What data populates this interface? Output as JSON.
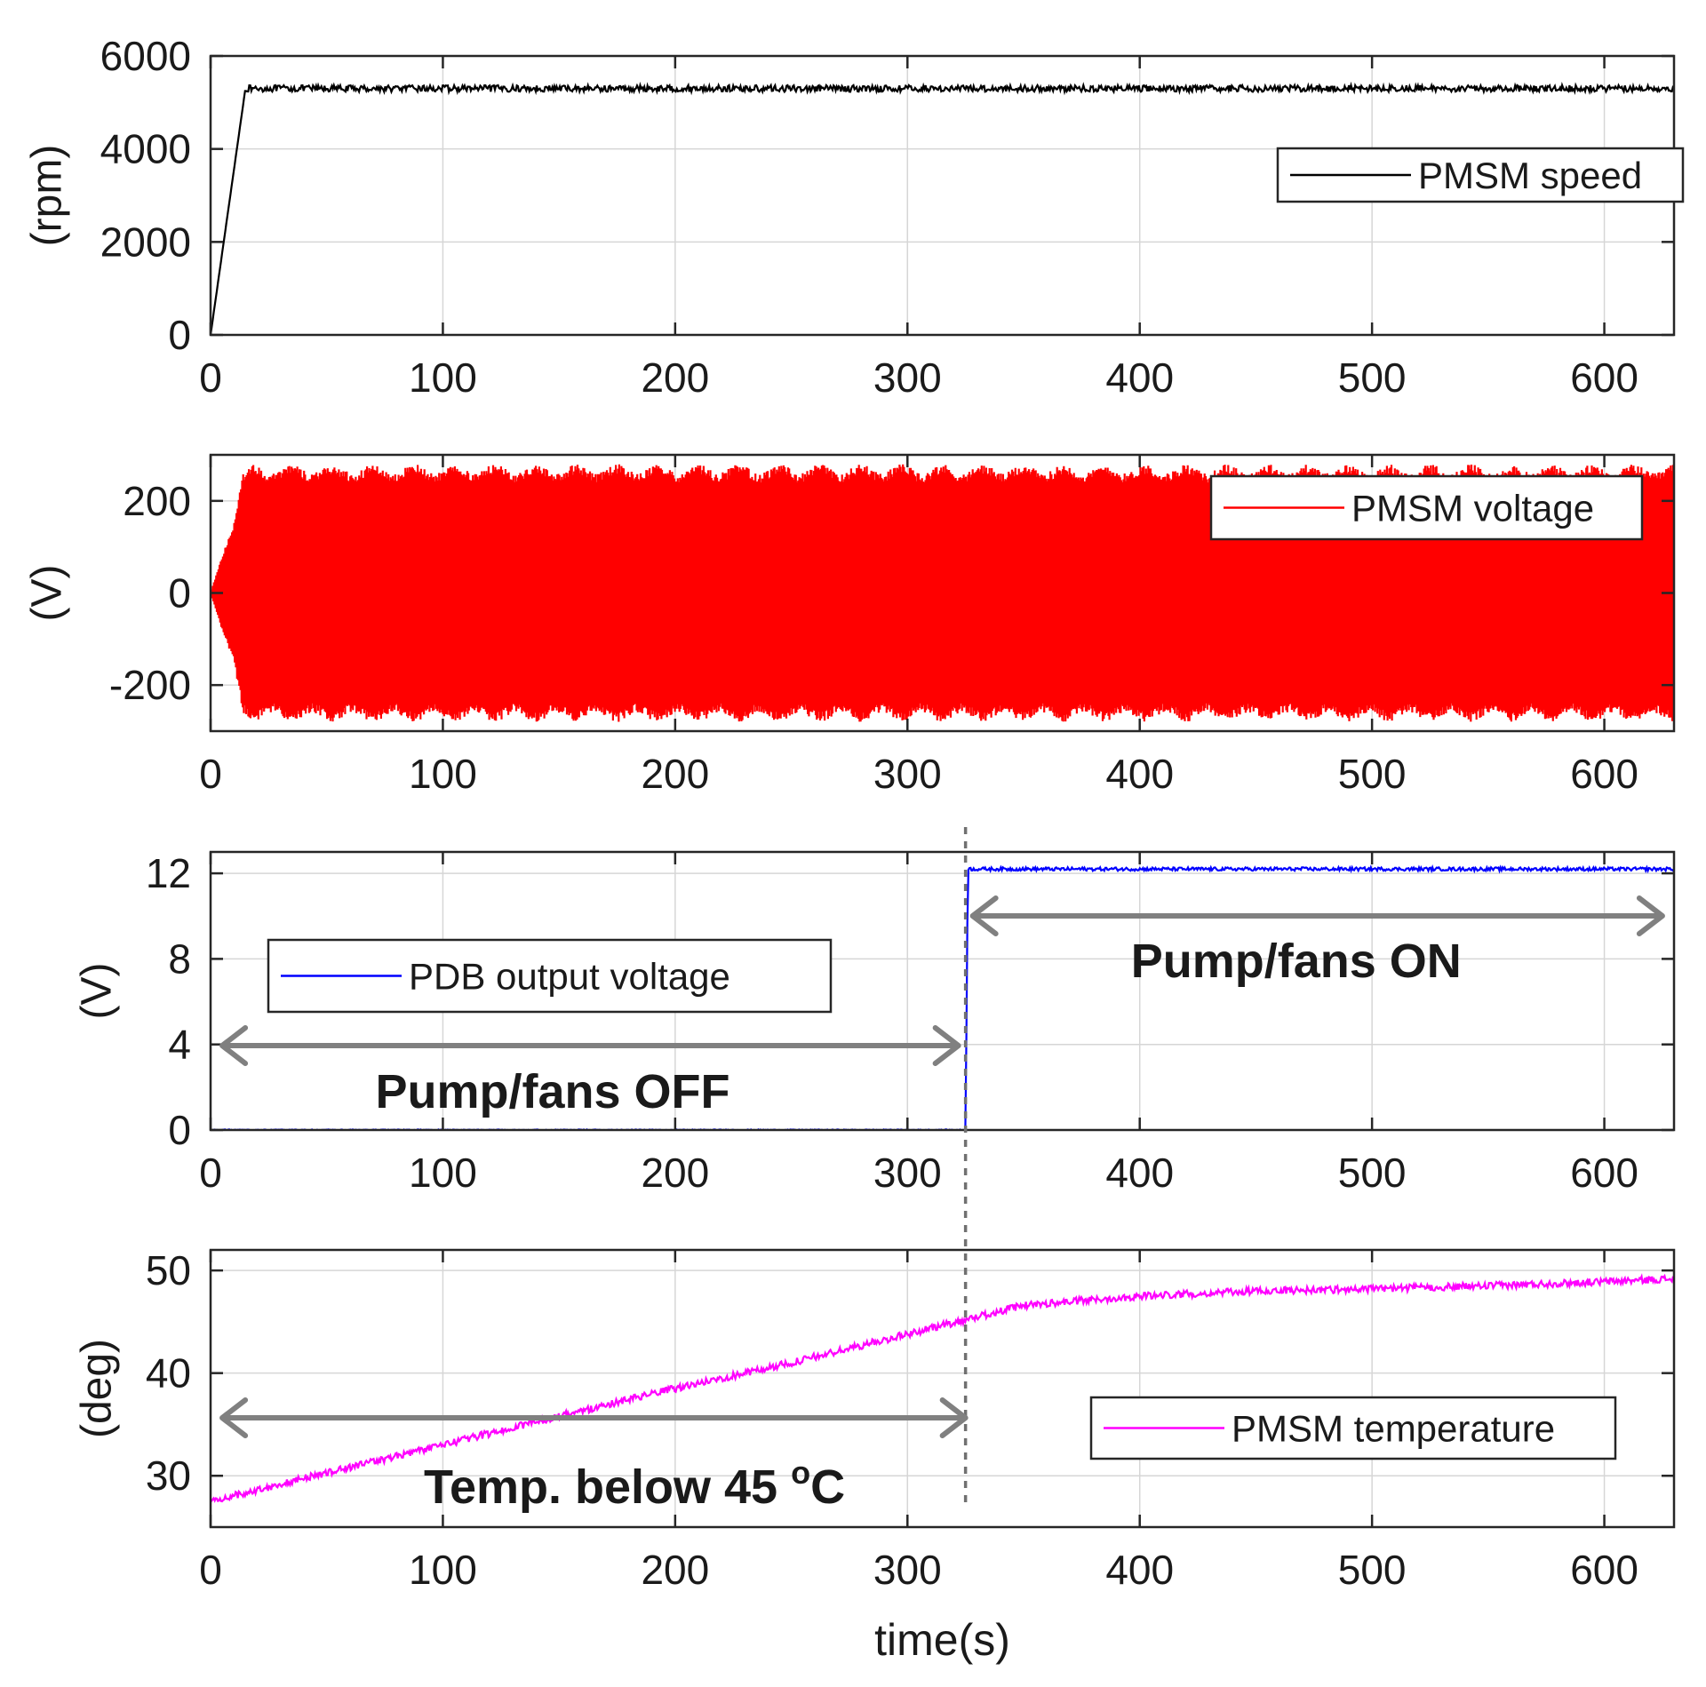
{
  "chart_data": [
    {
      "type": "line",
      "id": "speed",
      "series": [
        {
          "name": "PMSM speed",
          "color": "#000000",
          "profile": [
            [
              0,
              0
            ],
            [
              15,
              5300
            ],
            [
              630,
              5300
            ]
          ],
          "noise": 70
        }
      ],
      "xlim": [
        0,
        630
      ],
      "ylim": [
        0,
        6000
      ],
      "xticks": [
        0,
        100,
        200,
        300,
        400,
        500,
        600
      ],
      "yticks": [
        0,
        2000,
        4000,
        6000
      ],
      "ylabel": "(rpm)",
      "xlabel": "",
      "legend": {
        "label": "PMSM speed",
        "placement": "right"
      },
      "grid": true
    },
    {
      "type": "line",
      "id": "voltage",
      "series": [
        {
          "name": "PMSM voltage",
          "color": "#ff0000",
          "envelope": [
            [
              0,
              0
            ],
            [
              5,
              80
            ],
            [
              10,
              150
            ],
            [
              14,
              260
            ],
            [
              18,
              280
            ],
            [
              630,
              280
            ]
          ],
          "beat_period": 17.5,
          "beat_depth": 20
        }
      ],
      "xlim": [
        0,
        630
      ],
      "ylim": [
        -300,
        300
      ],
      "xticks": [
        0,
        100,
        200,
        300,
        400,
        500,
        600
      ],
      "yticks": [
        -200,
        0,
        200
      ],
      "ylabel": "(V)",
      "xlabel": "",
      "legend": {
        "label": "PMSM voltage",
        "placement": "top-right"
      },
      "grid": true
    },
    {
      "type": "line",
      "id": "pdb",
      "series": [
        {
          "name": "PDB output voltage",
          "color": "#0000ff",
          "profile": [
            [
              0,
              0
            ],
            [
              325,
              0
            ],
            [
              326,
              12.2
            ],
            [
              630,
              12.2
            ]
          ],
          "noise": 0.08
        }
      ],
      "xlim": [
        0,
        630
      ],
      "ylim": [
        0,
        13
      ],
      "xticks": [
        0,
        100,
        200,
        300,
        400,
        500,
        600
      ],
      "yticks": [
        0,
        4,
        8,
        12
      ],
      "ylabel": "(V)",
      "xlabel": "",
      "legend": {
        "label": "PDB output voltage",
        "placement": "left"
      },
      "grid": true
    },
    {
      "type": "line",
      "id": "temp",
      "series": [
        {
          "name": "PMSM temperature",
          "color": "#ff00ff",
          "profile": [
            [
              0,
              27.5
            ],
            [
              50,
              30.3
            ],
            [
              100,
              33
            ],
            [
              150,
              35.8
            ],
            [
              200,
              38.5
            ],
            [
              250,
              41
            ],
            [
              300,
              43.8
            ],
            [
              325,
              45.2
            ],
            [
              350,
              46.6
            ],
            [
              400,
              47.5
            ],
            [
              450,
              48
            ],
            [
              500,
              48.2
            ],
            [
              550,
              48.5
            ],
            [
              600,
              48.9
            ],
            [
              630,
              49.2
            ]
          ],
          "noise": 0.35
        }
      ],
      "xlim": [
        0,
        630
      ],
      "ylim": [
        25,
        52
      ],
      "xticks": [
        0,
        100,
        200,
        300,
        400,
        500,
        600
      ],
      "yticks": [
        30,
        40,
        50
      ],
      "ylabel": "(deg)",
      "xlabel": "time(s)",
      "legend": {
        "label": "PMSM temperature",
        "placement": "bottom-right"
      },
      "grid": true
    }
  ],
  "annotations": {
    "event_time": 325,
    "pump_on": {
      "text": "Pump/fans ON",
      "from": 325,
      "to": 625
    },
    "pump_off": {
      "text": "Pump/fans OFF",
      "from": 5,
      "to": 325
    },
    "temp_below": {
      "text_main": "Temp. below 45 ",
      "text_sup": "o",
      "text_unit": "C",
      "from": 5,
      "to": 325
    }
  }
}
